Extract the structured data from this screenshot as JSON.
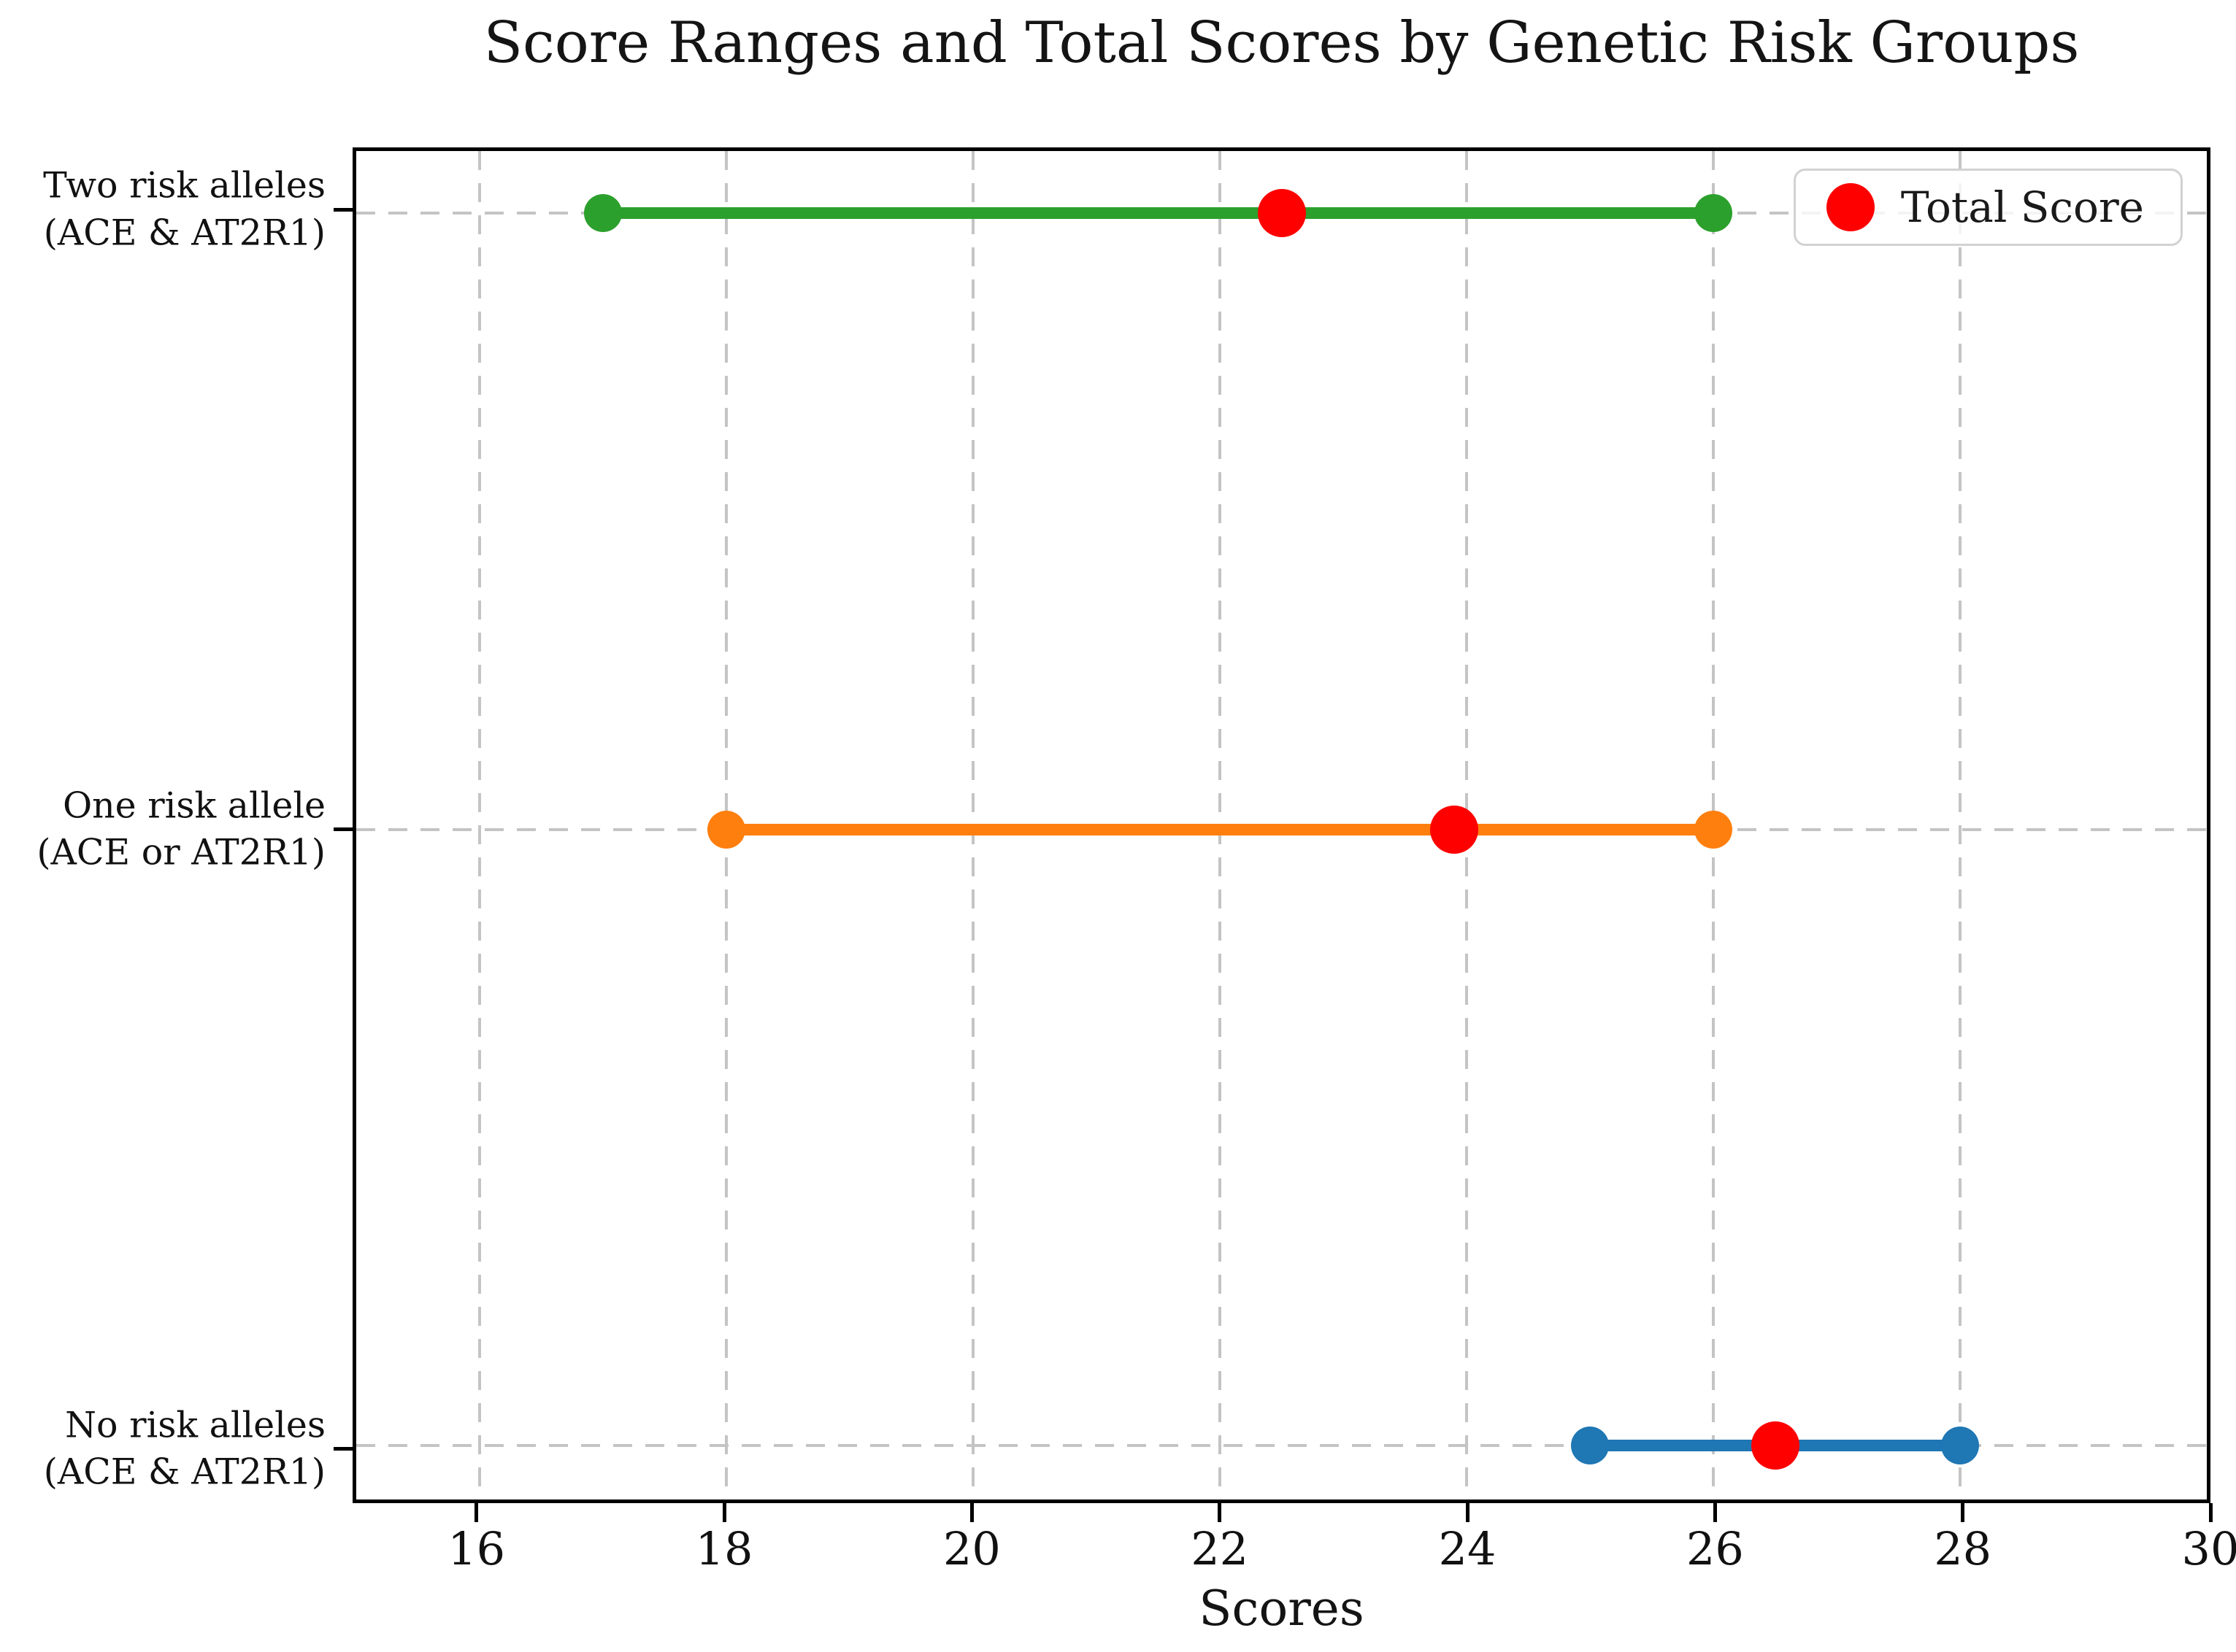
{
  "title": "Score Ranges and Total Scores by Genetic Risk Groups",
  "x_axis": {
    "label": "Scores",
    "tick_labels": [
      "16",
      "18",
      "20",
      "22",
      "24",
      "26",
      "28",
      "30"
    ]
  },
  "legend": {
    "label": "Total Score",
    "marker_color": "#ff0000"
  },
  "chart_data": {
    "type": "scatter",
    "subtype": "dumbbell_range",
    "title": "Score Ranges and Total Scores by Genetic Risk Groups",
    "xlabel": "Scores",
    "ylabel": "",
    "xlim": [
      15,
      30
    ],
    "xticks": [
      16,
      18,
      20,
      22,
      24,
      26,
      28,
      30
    ],
    "grid": true,
    "grid_style": "dashed",
    "grid_color": "#c4c4c4",
    "legend": {
      "label": "Total Score",
      "position": "upper right",
      "marker_color": "#ff0000"
    },
    "total_marker_color": "#ff0000",
    "groups": [
      {
        "label_lines": [
          "Two risk alleles",
          "(ACE & AT2R1)"
        ],
        "label": "Two risk alleles (ACE & AT2R1)",
        "min": 17,
        "max": 26,
        "total": 22.5,
        "color": "#2ca02c"
      },
      {
        "label_lines": [
          "One risk allele",
          "(ACE or AT2R1)"
        ],
        "label": "One risk allele (ACE or AT2R1)",
        "min": 18,
        "max": 26,
        "total": 23.9,
        "color": "#ff7f0e"
      },
      {
        "label_lines": [
          "No risk alleles",
          "(ACE & AT2R1)"
        ],
        "label": "No risk alleles (ACE & AT2R1)",
        "min": 25,
        "max": 28,
        "total": 26.5,
        "color": "#1f77b4"
      }
    ]
  }
}
